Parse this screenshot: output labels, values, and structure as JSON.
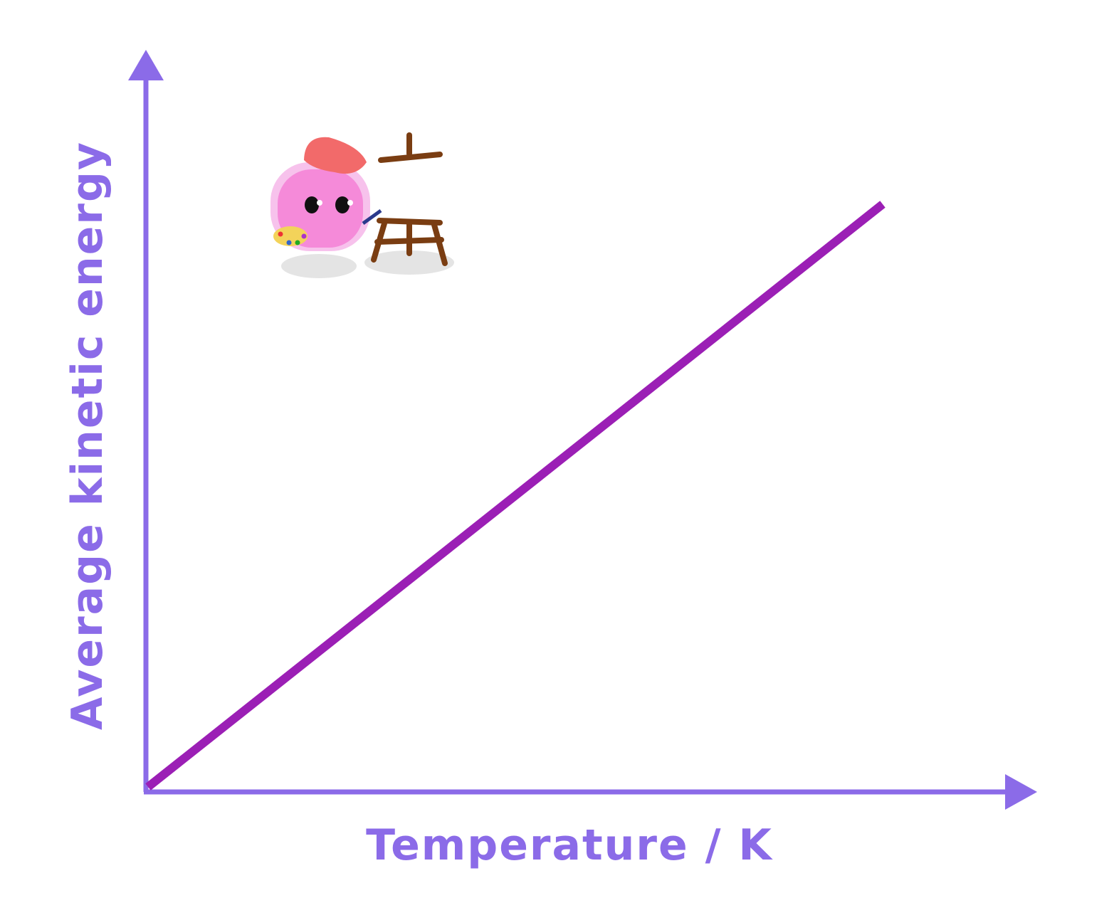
{
  "x_axis": {
    "label": "Temperature / K"
  },
  "y_axis": {
    "label": "Average kinetic energy"
  }
}
